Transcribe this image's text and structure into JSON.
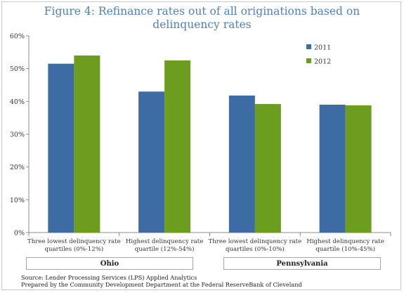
{
  "title_lines": [
    "Figure 4: Refinance rates out of all originations based on",
    "delinquency rates"
  ],
  "colors": {
    "2011": "#3d6ba3",
    "2012": "#6d9d1f"
  },
  "chart_data": {
    "type": "bar",
    "title": "Figure 4: Refinance rates out of all originations based on delinquency rates",
    "categories": [
      [
        "Three lowest delinquency rate",
        "quartiles (0%-12%)"
      ],
      [
        "Highest delinquency rate",
        "quartile (12%-54%)"
      ],
      [
        "Three lowest delinquency rate",
        "quartiles (0%-10%)"
      ],
      [
        "Highest delinquency rate",
        "quartile (10%-45%)"
      ]
    ],
    "groups": [
      {
        "label": "Ohio",
        "categories": [
          0,
          1
        ]
      },
      {
        "label": "Pennsylvania",
        "categories": [
          2,
          3
        ]
      }
    ],
    "series": [
      {
        "name": "2011",
        "values": [
          51.5,
          43.0,
          41.8,
          39.0
        ]
      },
      {
        "name": "2012",
        "values": [
          54.0,
          52.5,
          39.2,
          38.8
        ]
      }
    ],
    "ylim": [
      0,
      60
    ],
    "yticks": [
      0,
      10,
      20,
      30,
      40,
      50,
      60
    ],
    "ytick_format": "{v}%",
    "grid": false,
    "legend": "top-right"
  },
  "source": "Source: Lender Processing Services (LPS) Applied Analytics",
  "prepared_by": "Prepared by the Community Development Department at the Federal ReserveBank of Cleveland"
}
